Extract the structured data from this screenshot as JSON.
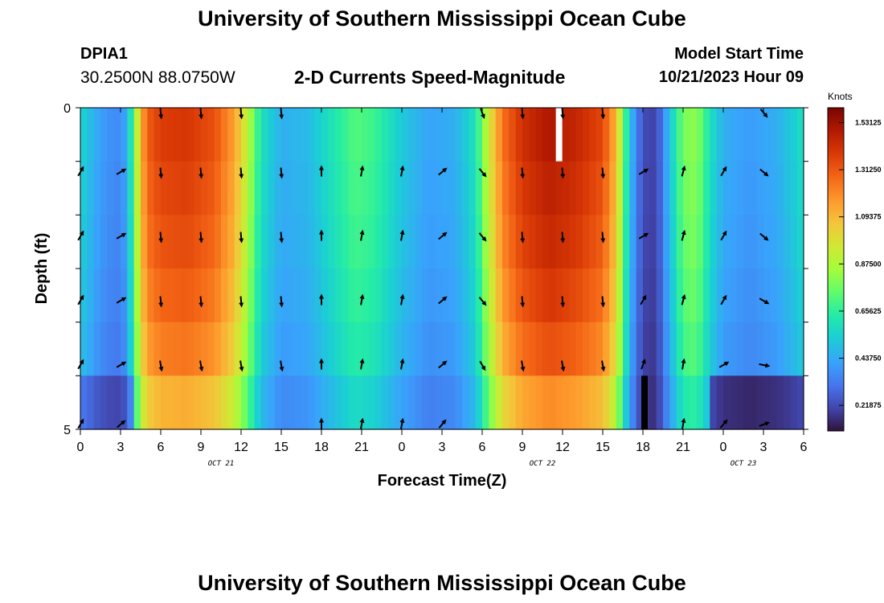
{
  "header": {
    "title": "University of Southern Mississippi Ocean Cube",
    "station_id": "DPIA1",
    "coordinates": "30.2500N  88.0750W",
    "subtitle": "2-D Currents Speed-Magnitude",
    "model_start_label": "Model Start Time",
    "model_start_value": "10/21/2023 Hour 09"
  },
  "footer": {
    "title": "University of Southern Mississippi Ocean Cube"
  },
  "chart_data": {
    "type": "heatmap",
    "title": "2-D Currents Speed-Magnitude",
    "xlabel": "Forecast Time(Z)",
    "ylabel": "Depth (ft)",
    "x_ticks": [
      "0",
      "3",
      "6",
      "9",
      "12",
      "15",
      "18",
      "21",
      "0",
      "3",
      "6",
      "9",
      "12",
      "15",
      "18",
      "21",
      "0",
      "3",
      "6"
    ],
    "date_labels": [
      {
        "text": "OCT 21",
        "tick_index": 3.5
      },
      {
        "text": "OCT 22",
        "tick_index": 11.5
      },
      {
        "text": "OCT 23",
        "tick_index": 16.5
      }
    ],
    "y_tick_labels": [
      "0",
      "5"
    ],
    "ylim": [
      0,
      5
    ],
    "x_range_hours": [
      0,
      54
    ],
    "colorbar": {
      "label": "Knots",
      "ticks": [
        "1.53125",
        "1.31250",
        "1.09375",
        "0.87500",
        "0.65625",
        "0.43750",
        "0.21875"
      ],
      "range": [
        0.1,
        1.6
      ]
    },
    "speed_profile_knots": [
      [
        0,
        0.55
      ],
      [
        0.5,
        0.52
      ],
      [
        1,
        0.45
      ],
      [
        2,
        0.38
      ],
      [
        3,
        0.36
      ],
      [
        3.5,
        0.45
      ],
      [
        4,
        0.75
      ],
      [
        4.5,
        1.1
      ],
      [
        5,
        1.3
      ],
      [
        6,
        1.38
      ],
      [
        8,
        1.4
      ],
      [
        10,
        1.33
      ],
      [
        11.5,
        1.15
      ],
      [
        12.5,
        0.9
      ],
      [
        13.5,
        0.6
      ],
      [
        15,
        0.45
      ],
      [
        17,
        0.48
      ],
      [
        19,
        0.62
      ],
      [
        20.5,
        0.72
      ],
      [
        22,
        0.68
      ],
      [
        24,
        0.52
      ],
      [
        26,
        0.42
      ],
      [
        28,
        0.45
      ],
      [
        29.5,
        0.6
      ],
      [
        30.5,
        0.95
      ],
      [
        31.5,
        1.25
      ],
      [
        33,
        1.42
      ],
      [
        35,
        1.5
      ],
      [
        37,
        1.45
      ],
      [
        39,
        1.35
      ],
      [
        40,
        1.1
      ],
      [
        41,
        0.5
      ],
      [
        42,
        0.22
      ],
      [
        43,
        0.2
      ],
      [
        44,
        0.5
      ],
      [
        45,
        0.78
      ],
      [
        46,
        0.82
      ],
      [
        47,
        0.6
      ],
      [
        48,
        0.45
      ],
      [
        50,
        0.4
      ],
      [
        52,
        0.45
      ],
      [
        53.5,
        0.55
      ],
      [
        54,
        0.6
      ]
    ],
    "depth_scale": [
      1.0,
      0.98,
      0.96,
      0.93,
      0.89,
      0.8
    ],
    "bottom_deep_rows": [
      {
        "x_start": 0,
        "x_end": 4,
        "scale": 0.72
      },
      {
        "x_start": 47,
        "x_end": 54,
        "scale": 0.45
      }
    ],
    "missing_cells": [
      {
        "x_hour": 35.5,
        "depth_row": 0
      }
    ],
    "black_cells": [
      {
        "x_hour": 42,
        "depth_row": 5
      }
    ],
    "vector_times_hours": [
      0,
      3,
      6,
      9,
      12,
      15,
      18,
      21,
      24,
      27,
      30,
      33,
      36,
      39,
      42,
      45,
      48,
      51
    ],
    "vector_depths_ft": [
      0,
      1,
      2,
      3,
      4,
      5
    ],
    "vector_directions_deg": [
      [
        null,
        null,
        175,
        175,
        175,
        175,
        null,
        null,
        null,
        null,
        160,
        175,
        175,
        175,
        null,
        null,
        null,
        140
      ],
      [
        30,
        60,
        175,
        175,
        175,
        175,
        0,
        10,
        10,
        50,
        140,
        175,
        175,
        175,
        60,
        15,
        30,
        130
      ],
      [
        30,
        60,
        175,
        175,
        175,
        175,
        0,
        10,
        10,
        50,
        140,
        175,
        175,
        175,
        60,
        15,
        30,
        130
      ],
      [
        30,
        60,
        175,
        175,
        175,
        175,
        0,
        10,
        10,
        50,
        140,
        175,
        175,
        175,
        30,
        15,
        30,
        120
      ],
      [
        30,
        60,
        170,
        170,
        170,
        170,
        0,
        10,
        10,
        50,
        150,
        170,
        170,
        170,
        20,
        10,
        60,
        100
      ],
      [
        30,
        50,
        null,
        null,
        null,
        null,
        0,
        10,
        10,
        40,
        null,
        null,
        null,
        null,
        null,
        10,
        40,
        70
      ]
    ]
  }
}
